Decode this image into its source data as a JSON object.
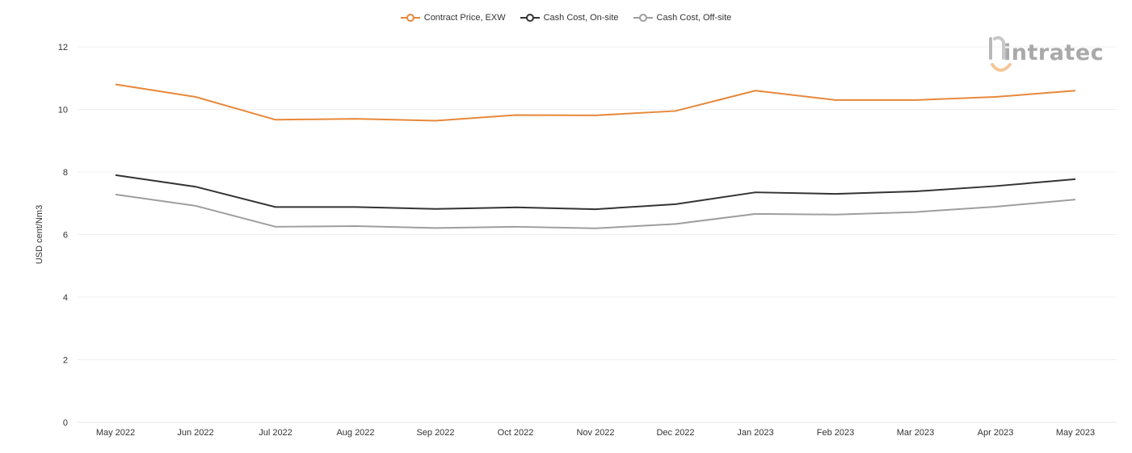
{
  "chart_data": {
    "type": "line",
    "title": "",
    "xlabel": "",
    "ylabel": "USD cent/Nm3",
    "ylim": [
      0,
      12
    ],
    "yticks": [
      0,
      2,
      4,
      6,
      8,
      10,
      12
    ],
    "grid": true,
    "legend": "top-center",
    "categories": [
      "May 2022",
      "Jun 2022",
      "Jul 2022",
      "Aug 2022",
      "Sep 2022",
      "Oct 2022",
      "Nov 2022",
      "Dec 2022",
      "Jan 2023",
      "Feb 2023",
      "Mar 2023",
      "Apr 2023",
      "May 2023"
    ],
    "series": [
      {
        "name": "Contract Price, EXW",
        "color": "#e8883a",
        "values": [
          10.8,
          10.4,
          9.67,
          9.7,
          9.64,
          9.82,
          9.81,
          9.95,
          10.6,
          10.3,
          10.3,
          10.4,
          10.6
        ]
      },
      {
        "name": "Cash Cost, On-site",
        "color": "#333333",
        "values": [
          7.9,
          7.53,
          6.88,
          6.88,
          6.82,
          6.87,
          6.81,
          6.97,
          7.35,
          7.3,
          7.38,
          7.55,
          7.77
        ]
      },
      {
        "name": "Cash Cost, Off-site",
        "color": "#9e9e9e",
        "values": [
          7.28,
          6.92,
          6.25,
          6.27,
          6.21,
          6.25,
          6.2,
          6.34,
          6.66,
          6.64,
          6.72,
          6.89,
          7.12
        ]
      }
    ]
  },
  "logo": {
    "text": "intratec",
    "icon": "intratec-logo-mark"
  }
}
